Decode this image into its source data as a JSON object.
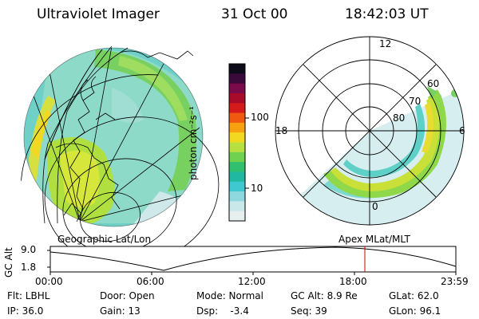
{
  "header": {
    "instrument": "Ultraviolet Imager",
    "date": "31 Oct 00",
    "time": "18:42:03 UT"
  },
  "colorbar": {
    "unit_label": "photon cm⁻²s⁻¹",
    "ticks": [
      "100",
      "10"
    ],
    "colors": [
      "#0b0b1a",
      "#3a0a3a",
      "#7a0a4a",
      "#a80a2a",
      "#d41a1a",
      "#f05a10",
      "#f7a010",
      "#f2d820",
      "#b8e040",
      "#70d050",
      "#30c070",
      "#20b8a0",
      "#40c8d0",
      "#90d8e0",
      "#c8e8ea",
      "#e6eeee"
    ]
  },
  "polar_plot": {
    "mlt_labels": [
      "12",
      "18",
      "6",
      "0"
    ],
    "mlat_labels": [
      "60",
      "70",
      "80"
    ],
    "caption": "Apex MLat/MLT"
  },
  "geo_plot": {
    "caption": "Geographic Lat/Lon"
  },
  "timeline": {
    "ylabel": "GC Alt",
    "yticks": [
      "9.0",
      "1.8"
    ],
    "xticks": [
      "00:00",
      "06:00",
      "12:00",
      "18:00",
      "23:59"
    ],
    "marker_color": "#cc0000"
  },
  "status": {
    "flt": "Flt: LBHL",
    "door": "Door: Open",
    "mode": "Mode: Normal",
    "gc_alt": "GC Alt: 8.9 Re",
    "glat": "GLat: 62.0",
    "ip": "IP: 36.0",
    "gain": "Gain: 13",
    "dsp": "Dsp:    -3.4",
    "seq": "Seq: 39",
    "glon": "GLon: 96.1"
  }
}
